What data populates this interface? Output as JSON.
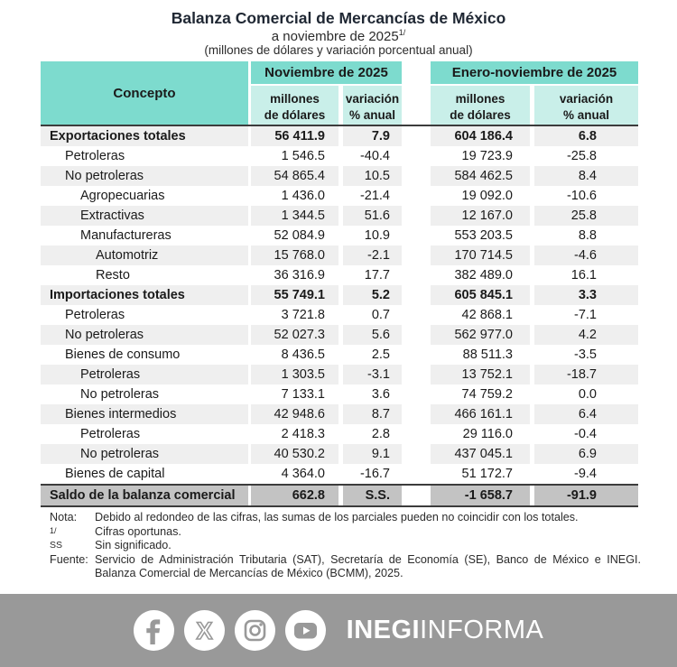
{
  "title": "Balanza Comercial de Mercancías de México",
  "subtitle": "a noviembre de 2025",
  "subtitle_note_ref": "1/",
  "subtitle2": "(millones de dólares y variación porcentual anual)",
  "colors": {
    "header_teal": "#7DDBCE",
    "subheader_teal": "#C9EFE9",
    "row_shade": "#EFEFEF",
    "total_gray": "#C3C3C3",
    "footer_gray": "#999999"
  },
  "table": {
    "concepto_header": "Concepto",
    "periods": [
      {
        "label": "Noviembre de 2025",
        "cols": [
          {
            "l1": "millones",
            "l2": "de dólares"
          },
          {
            "l1": "variación",
            "l2": "% anual"
          }
        ]
      },
      {
        "label": "Enero-noviembre de 2025",
        "cols": [
          {
            "l1": "millones",
            "l2": "de dólares"
          },
          {
            "l1": "variación",
            "l2": "% anual"
          }
        ]
      }
    ],
    "rows": [
      {
        "label": "Exportaciones totales",
        "indent": 0,
        "bold": true,
        "values": [
          "56 411.9",
          "7.9",
          "604 186.4",
          "6.8"
        ]
      },
      {
        "label": "Petroleras",
        "indent": 1,
        "bold": false,
        "values": [
          "1 546.5",
          "-40.4",
          "19 723.9",
          "-25.8"
        ]
      },
      {
        "label": "No petroleras",
        "indent": 1,
        "bold": false,
        "values": [
          "54 865.4",
          "10.5",
          "584 462.5",
          "8.4"
        ]
      },
      {
        "label": "Agropecuarias",
        "indent": 2,
        "bold": false,
        "values": [
          "1 436.0",
          "-21.4",
          "19 092.0",
          "-10.6"
        ]
      },
      {
        "label": "Extractivas",
        "indent": 2,
        "bold": false,
        "values": [
          "1 344.5",
          "51.6",
          "12 167.0",
          "25.8"
        ]
      },
      {
        "label": "Manufactureras",
        "indent": 2,
        "bold": false,
        "values": [
          "52 084.9",
          "10.9",
          "553 203.5",
          "8.8"
        ]
      },
      {
        "label": "Automotriz",
        "indent": 3,
        "bold": false,
        "values": [
          "15 768.0",
          "-2.1",
          "170 714.5",
          "-4.6"
        ]
      },
      {
        "label": "Resto",
        "indent": 3,
        "bold": false,
        "values": [
          "36 316.9",
          "17.7",
          "382 489.0",
          "16.1"
        ]
      },
      {
        "label": "Importaciones totales",
        "indent": 0,
        "bold": true,
        "values": [
          "55 749.1",
          "5.2",
          "605 845.1",
          "3.3"
        ]
      },
      {
        "label": "Petroleras",
        "indent": 1,
        "bold": false,
        "values": [
          "3 721.8",
          "0.7",
          "42 868.1",
          "-7.1"
        ]
      },
      {
        "label": "No petroleras",
        "indent": 1,
        "bold": false,
        "values": [
          "52 027.3",
          "5.6",
          "562 977.0",
          "4.2"
        ]
      },
      {
        "label": "Bienes de consumo",
        "indent": 1,
        "bold": false,
        "values": [
          "8 436.5",
          "2.5",
          "88 511.3",
          "-3.5"
        ]
      },
      {
        "label": "Petroleras",
        "indent": 2,
        "bold": false,
        "values": [
          "1 303.5",
          "-3.1",
          "13 752.1",
          "-18.7"
        ]
      },
      {
        "label": "No petroleras",
        "indent": 2,
        "bold": false,
        "values": [
          "7 133.1",
          "3.6",
          "74 759.2",
          "0.0"
        ]
      },
      {
        "label": "Bienes intermedios",
        "indent": 1,
        "bold": false,
        "values": [
          "42 948.6",
          "8.7",
          "466 161.1",
          "6.4"
        ]
      },
      {
        "label": "Petroleras",
        "indent": 2,
        "bold": false,
        "values": [
          "2 418.3",
          "2.8",
          "29 116.0",
          "-0.4"
        ]
      },
      {
        "label": "No petroleras",
        "indent": 2,
        "bold": false,
        "values": [
          "40 530.2",
          "9.1",
          "437 045.1",
          "6.9"
        ]
      },
      {
        "label": "Bienes de capital",
        "indent": 1,
        "bold": false,
        "values": [
          "4 364.0",
          "-16.7",
          "51 172.7",
          "-9.4"
        ]
      }
    ],
    "total_row": {
      "label": "Saldo de la balanza comercial",
      "values": [
        "662.8",
        "S.S.",
        "-1 658.7",
        "-91.9"
      ]
    }
  },
  "notes": [
    {
      "label": "Nota:",
      "text": "Debido al redondeo de las cifras, las sumas de los parciales pueden no coincidir con los totales."
    },
    {
      "label": "1/",
      "text": "Cifras oportunas."
    },
    {
      "label": "SS",
      "text": "Sin significado."
    },
    {
      "label": "Fuente:",
      "text": "Servicio de Administración Tributaria (SAT), Secretaría de Economía (SE), Banco de México e INEGI. Balanza Comercial de Mercancías de México (BCMM), 2025."
    }
  ],
  "footer": {
    "icons": [
      "facebook-icon",
      "x-icon",
      "instagram-icon",
      "youtube-icon"
    ],
    "brand_bold": "INEGI",
    "brand_light": "INFORMA"
  },
  "chart_data": {
    "type": "table",
    "title": "Balanza Comercial de Mercancías de México",
    "subtitle": "a noviembre de 2025 1/",
    "units": "millones de dólares y variación porcentual anual",
    "column_groups": [
      "Noviembre de 2025",
      "Enero-noviembre de 2025"
    ],
    "columns": [
      "Concepto",
      "Nov 2025 millones de dólares",
      "Nov 2025 variación % anual",
      "Ene-nov 2025 millones de dólares",
      "Ene-nov 2025 variación % anual"
    ],
    "rows": [
      [
        "Exportaciones totales",
        56411.9,
        7.9,
        604186.4,
        6.8
      ],
      [
        "Petroleras",
        1546.5,
        -40.4,
        19723.9,
        -25.8
      ],
      [
        "No petroleras",
        54865.4,
        10.5,
        584462.5,
        8.4
      ],
      [
        "Agropecuarias",
        1436.0,
        -21.4,
        19092.0,
        -10.6
      ],
      [
        "Extractivas",
        1344.5,
        51.6,
        12167.0,
        25.8
      ],
      [
        "Manufactureras",
        52084.9,
        10.9,
        553203.5,
        8.8
      ],
      [
        "Automotriz",
        15768.0,
        -2.1,
        170714.5,
        -4.6
      ],
      [
        "Resto",
        36316.9,
        17.7,
        382489.0,
        16.1
      ],
      [
        "Importaciones totales",
        55749.1,
        5.2,
        605845.1,
        3.3
      ],
      [
        "Petroleras",
        3721.8,
        0.7,
        42868.1,
        -7.1
      ],
      [
        "No petroleras",
        52027.3,
        5.6,
        562977.0,
        4.2
      ],
      [
        "Bienes de consumo",
        8436.5,
        2.5,
        88511.3,
        -3.5
      ],
      [
        "Petroleras",
        1303.5,
        -3.1,
        13752.1,
        -18.7
      ],
      [
        "No petroleras",
        7133.1,
        3.6,
        74759.2,
        0.0
      ],
      [
        "Bienes intermedios",
        42948.6,
        8.7,
        466161.1,
        6.4
      ],
      [
        "Petroleras",
        2418.3,
        2.8,
        29116.0,
        -0.4
      ],
      [
        "No petroleras",
        40530.2,
        9.1,
        437045.1,
        6.9
      ],
      [
        "Bienes de capital",
        4364.0,
        -16.7,
        51172.7,
        -9.4
      ],
      [
        "Saldo de la balanza comercial",
        662.8,
        "S.S.",
        -1658.7,
        -91.9
      ]
    ]
  }
}
